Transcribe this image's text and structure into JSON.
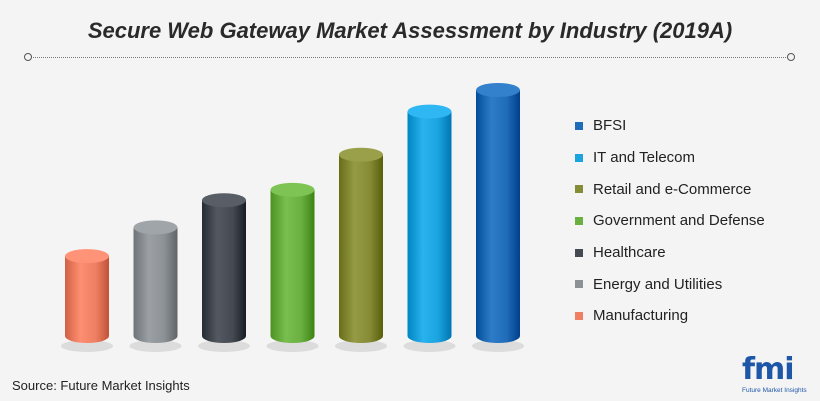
{
  "title": "Secure Web Gateway Market Assessment by Industry (2019A)",
  "source": "Source: Future Market Insights",
  "logo": {
    "mark": "fmi",
    "sub": "Future Market Insights"
  },
  "chart_data": {
    "type": "bar",
    "style": "3d-cylinder",
    "categories": [
      "Manufacturing",
      "Energy and Utilities",
      "Healthcare",
      "Government and Defense",
      "Retail and e-Commerce",
      "IT and Telecom",
      "BFSI"
    ],
    "values": [
      1.0,
      1.36,
      1.7,
      1.83,
      2.27,
      2.81,
      3.08
    ],
    "colors": [
      "#ef7f63",
      "#8c9196",
      "#454a52",
      "#6ab040",
      "#868b35",
      "#1aa3df",
      "#1f6cb8"
    ],
    "legend": {
      "position": "right",
      "entries": [
        "BFSI",
        "IT and Telecom",
        "Retail and e-Commerce",
        "Government and Defense",
        "Healthcare",
        "Energy and Utilities",
        "Manufacturing"
      ],
      "colors": [
        "#1f6cb8",
        "#1aa3df",
        "#868b35",
        "#6ab040",
        "#454a52",
        "#8c9196",
        "#ef7f63"
      ]
    },
    "grid": false,
    "axes_visible": false
  }
}
